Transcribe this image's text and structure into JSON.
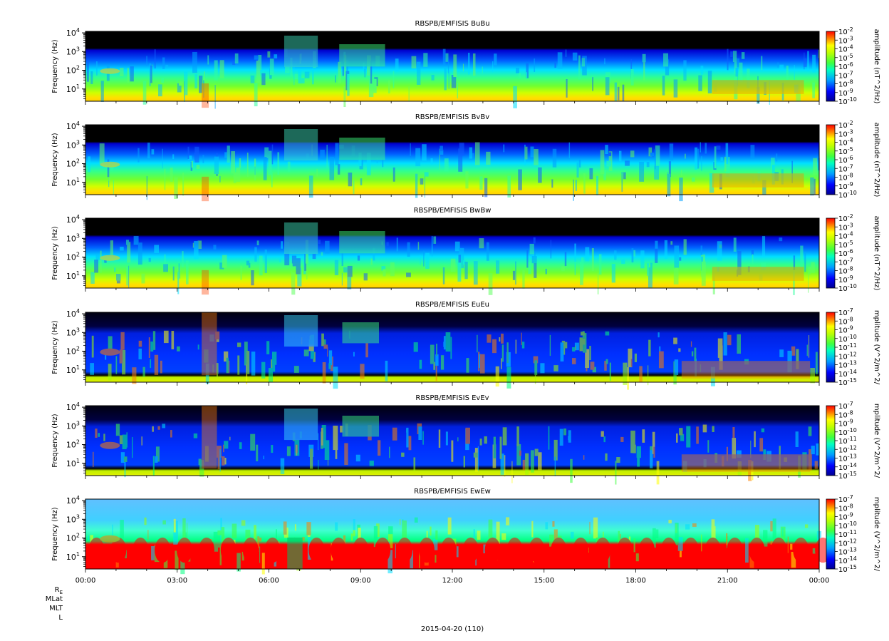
{
  "figure": {
    "date_label": "2015-04-20 (110)",
    "ephem_labels": [
      "R_E",
      "MLat",
      "MLT",
      "L"
    ]
  },
  "chart_data": [
    {
      "type": "heatmap",
      "title": "RBSPB/EMFISIS  BuBu",
      "ylabel": "Frequency (Hz)",
      "yscale": "log",
      "ylim": [
        2.2,
        12000
      ],
      "yticks": [
        {
          "value": 10,
          "exp": "1"
        },
        {
          "value": 100,
          "exp": "2"
        },
        {
          "value": 1000,
          "exp": "3"
        },
        {
          "value": 10000,
          "exp": "4"
        }
      ],
      "xlim_hours": [
        0,
        24
      ],
      "xticks": [
        "00:00",
        "03:00",
        "06:00",
        "09:00",
        "12:00",
        "15:00",
        "18:00",
        "21:00",
        "00:00"
      ],
      "colorbar": {
        "label": "amplitude (nT^2/Hz)",
        "scale": "log",
        "exponents": [
          "-2",
          "-3",
          "-4",
          "-5",
          "-6",
          "-7",
          "-8",
          "-9",
          "-10"
        ]
      }
    },
    {
      "type": "heatmap",
      "title": "RBSPB/EMFISIS  BvBv",
      "ylabel": "Frequency (Hz)",
      "yscale": "log",
      "ylim": [
        2.2,
        12000
      ],
      "yticks": [
        {
          "value": 10,
          "exp": "1"
        },
        {
          "value": 100,
          "exp": "2"
        },
        {
          "value": 1000,
          "exp": "3"
        },
        {
          "value": 10000,
          "exp": "4"
        }
      ],
      "xlim_hours": [
        0,
        24
      ],
      "xticks": [
        "00:00",
        "03:00",
        "06:00",
        "09:00",
        "12:00",
        "15:00",
        "18:00",
        "21:00",
        "00:00"
      ],
      "colorbar": {
        "label": "amplitude (nT^2/Hz)",
        "scale": "log",
        "exponents": [
          "-2",
          "-3",
          "-4",
          "-5",
          "-6",
          "-7",
          "-8",
          "-9",
          "-10"
        ]
      }
    },
    {
      "type": "heatmap",
      "title": "RBSPB/EMFISIS  BwBw",
      "ylabel": "Frequency (Hz)",
      "yscale": "log",
      "ylim": [
        2.2,
        12000
      ],
      "yticks": [
        {
          "value": 10,
          "exp": "1"
        },
        {
          "value": 100,
          "exp": "2"
        },
        {
          "value": 1000,
          "exp": "3"
        },
        {
          "value": 10000,
          "exp": "4"
        }
      ],
      "xlim_hours": [
        0,
        24
      ],
      "xticks": [
        "00:00",
        "03:00",
        "06:00",
        "09:00",
        "12:00",
        "15:00",
        "18:00",
        "21:00",
        "00:00"
      ],
      "colorbar": {
        "label": "amplitude (nT^2/Hz)",
        "scale": "log",
        "exponents": [
          "-2",
          "-3",
          "-4",
          "-5",
          "-6",
          "-7",
          "-8",
          "-9",
          "-10"
        ]
      }
    },
    {
      "type": "heatmap",
      "title": "RBSPB/EMFISIS  EuEu",
      "ylabel": "Frequency (Hz)",
      "yscale": "log",
      "ylim": [
        2.2,
        12000
      ],
      "yticks": [
        {
          "value": 10,
          "exp": "1"
        },
        {
          "value": 100,
          "exp": "2"
        },
        {
          "value": 1000,
          "exp": "3"
        },
        {
          "value": 10000,
          "exp": "4"
        }
      ],
      "xlim_hours": [
        0,
        24
      ],
      "xticks": [
        "00:00",
        "03:00",
        "06:00",
        "09:00",
        "12:00",
        "15:00",
        "18:00",
        "21:00",
        "00:00"
      ],
      "colorbar": {
        "label": "mplitude (V^2/m^2/",
        "scale": "log",
        "exponents": [
          "-7",
          "-8",
          "-9",
          "-10",
          "-11",
          "-12",
          "-13",
          "-14",
          "-15"
        ]
      }
    },
    {
      "type": "heatmap",
      "title": "RBSPB/EMFISIS  EvEv",
      "ylabel": "Frequency (Hz)",
      "yscale": "log",
      "ylim": [
        2.2,
        12000
      ],
      "yticks": [
        {
          "value": 10,
          "exp": "1"
        },
        {
          "value": 100,
          "exp": "2"
        },
        {
          "value": 1000,
          "exp": "3"
        },
        {
          "value": 10000,
          "exp": "4"
        }
      ],
      "xlim_hours": [
        0,
        24
      ],
      "xticks": [
        "00:00",
        "03:00",
        "06:00",
        "09:00",
        "12:00",
        "15:00",
        "18:00",
        "21:00",
        "00:00"
      ],
      "colorbar": {
        "label": "mplitude (V^2/m^2/",
        "scale": "log",
        "exponents": [
          "-7",
          "-8",
          "-9",
          "-10",
          "-11",
          "-12",
          "-13",
          "-14",
          "-15"
        ]
      }
    },
    {
      "type": "heatmap",
      "title": "RBSPB/EMFISIS  EwEw",
      "ylabel": "Frequency (Hz)",
      "yscale": "log",
      "ylim": [
        2.2,
        12000
      ],
      "yticks": [
        {
          "value": 10,
          "exp": "1"
        },
        {
          "value": 100,
          "exp": "2"
        },
        {
          "value": 1000,
          "exp": "3"
        },
        {
          "value": 10000,
          "exp": "4"
        }
      ],
      "xlim_hours": [
        0,
        24
      ],
      "xticks": [
        "00:00",
        "03:00",
        "06:00",
        "09:00",
        "12:00",
        "15:00",
        "18:00",
        "21:00",
        "00:00"
      ],
      "colorbar": {
        "label": "mplitude (V^2/m^2/",
        "scale": "log",
        "exponents": [
          "-7",
          "-8",
          "-9",
          "-10",
          "-11",
          "-12",
          "-13",
          "-14",
          "-15"
        ]
      }
    }
  ]
}
